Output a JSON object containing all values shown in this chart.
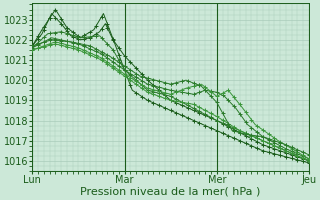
{
  "bg_color": "#cce8d8",
  "grid_color": "#aaccbb",
  "line_color_dark": "#1a5c1a",
  "line_color_mid": "#2a7a2a",
  "line_color_light": "#3a963a",
  "xlabel": "Pression niveau de la mer( hPa )",
  "ylim": [
    1015.5,
    1023.8
  ],
  "yticks": [
    1016,
    1017,
    1018,
    1019,
    1020,
    1021,
    1022,
    1023
  ],
  "days": [
    "Lun",
    "Mar",
    "Mer",
    "Jeu"
  ],
  "day_positions": [
    0,
    48,
    96,
    144
  ],
  "xlabel_fontsize": 8,
  "tick_fontsize": 7
}
